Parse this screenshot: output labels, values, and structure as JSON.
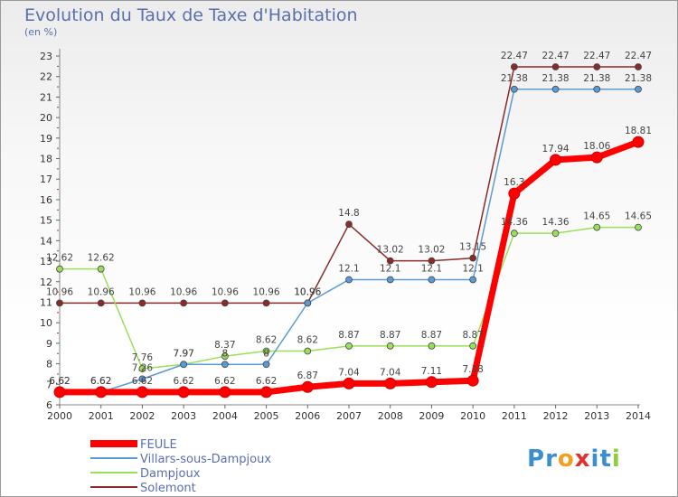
{
  "chart_data": {
    "type": "line",
    "title": "Evolution du Taux de Taxe d'Habitation",
    "subtitle": "(en %)",
    "x": [
      "2000",
      "2001",
      "2002",
      "2003",
      "2004",
      "2005",
      "2006",
      "2007",
      "2008",
      "2009",
      "2010",
      "2011",
      "2012",
      "2013",
      "2014"
    ],
    "ylim": [
      6,
      23
    ],
    "yticks": [
      6,
      7,
      8,
      9,
      10,
      11,
      12,
      13,
      14,
      15,
      16,
      17,
      18,
      19,
      20,
      21,
      22,
      23
    ],
    "grid": false,
    "legend_position": "bottom-left",
    "series": [
      {
        "name": "FEULE",
        "color": "#ff0000",
        "values": [
          6.62,
          6.62,
          6.62,
          6.62,
          6.62,
          6.62,
          6.87,
          7.04,
          7.04,
          7.11,
          7.18,
          16.3,
          17.94,
          18.06,
          18.81
        ],
        "labels": [
          "6.62",
          "6.62",
          "6.62",
          "6.62",
          "6.62",
          "6.62",
          "6.87",
          "7.04",
          "7.04",
          "7.11",
          "7.18",
          "16.3",
          "17.94",
          "18.06",
          "18.81"
        ]
      },
      {
        "name": "Villars-sous-Dampjoux",
        "color": "#5b9bd5",
        "values": [
          6.62,
          6.62,
          7.26,
          7.97,
          7.97,
          7.97,
          10.96,
          12.1,
          12.1,
          12.1,
          12.1,
          21.38,
          21.38,
          21.38,
          21.38
        ],
        "labels": [
          "6.62",
          "6.62",
          "7.26",
          "7.97",
          "8",
          "8",
          "10.96",
          "12.1",
          "12.1",
          "12.1",
          "12.1",
          "21.38",
          "21.38",
          "21.38",
          "21.38"
        ]
      },
      {
        "name": "Dampjoux",
        "color": "#9adf5a",
        "values": [
          12.62,
          12.62,
          7.76,
          7.97,
          8.37,
          8.62,
          8.62,
          8.87,
          8.87,
          8.87,
          8.87,
          14.36,
          14.36,
          14.65,
          14.65
        ],
        "labels": [
          "12.62",
          "12.62",
          "7.76",
          "7.97",
          "8.37",
          "8.62",
          "8.62",
          "8.87",
          "8.87",
          "8.87",
          "8.87",
          "14.36",
          "14.36",
          "14.65",
          "14.65"
        ]
      },
      {
        "name": "Solemont",
        "color": "#8a2a2a",
        "values": [
          10.96,
          10.96,
          10.96,
          10.96,
          10.96,
          10.96,
          10.96,
          14.8,
          13.02,
          13.02,
          13.15,
          22.47,
          22.47,
          22.47,
          22.47
        ],
        "labels": [
          "10.96",
          "10.96",
          "10.96",
          "10.96",
          "10.96",
          "10.96",
          "10.96",
          "14.8",
          "13.02",
          "13.02",
          "13.15",
          "22.47",
          "22.47",
          "22.47",
          "22.47"
        ]
      }
    ]
  },
  "logo": {
    "text": "Proxiti",
    "letters": [
      "P",
      "r",
      "o",
      "x",
      "i",
      "t",
      "i"
    ]
  }
}
